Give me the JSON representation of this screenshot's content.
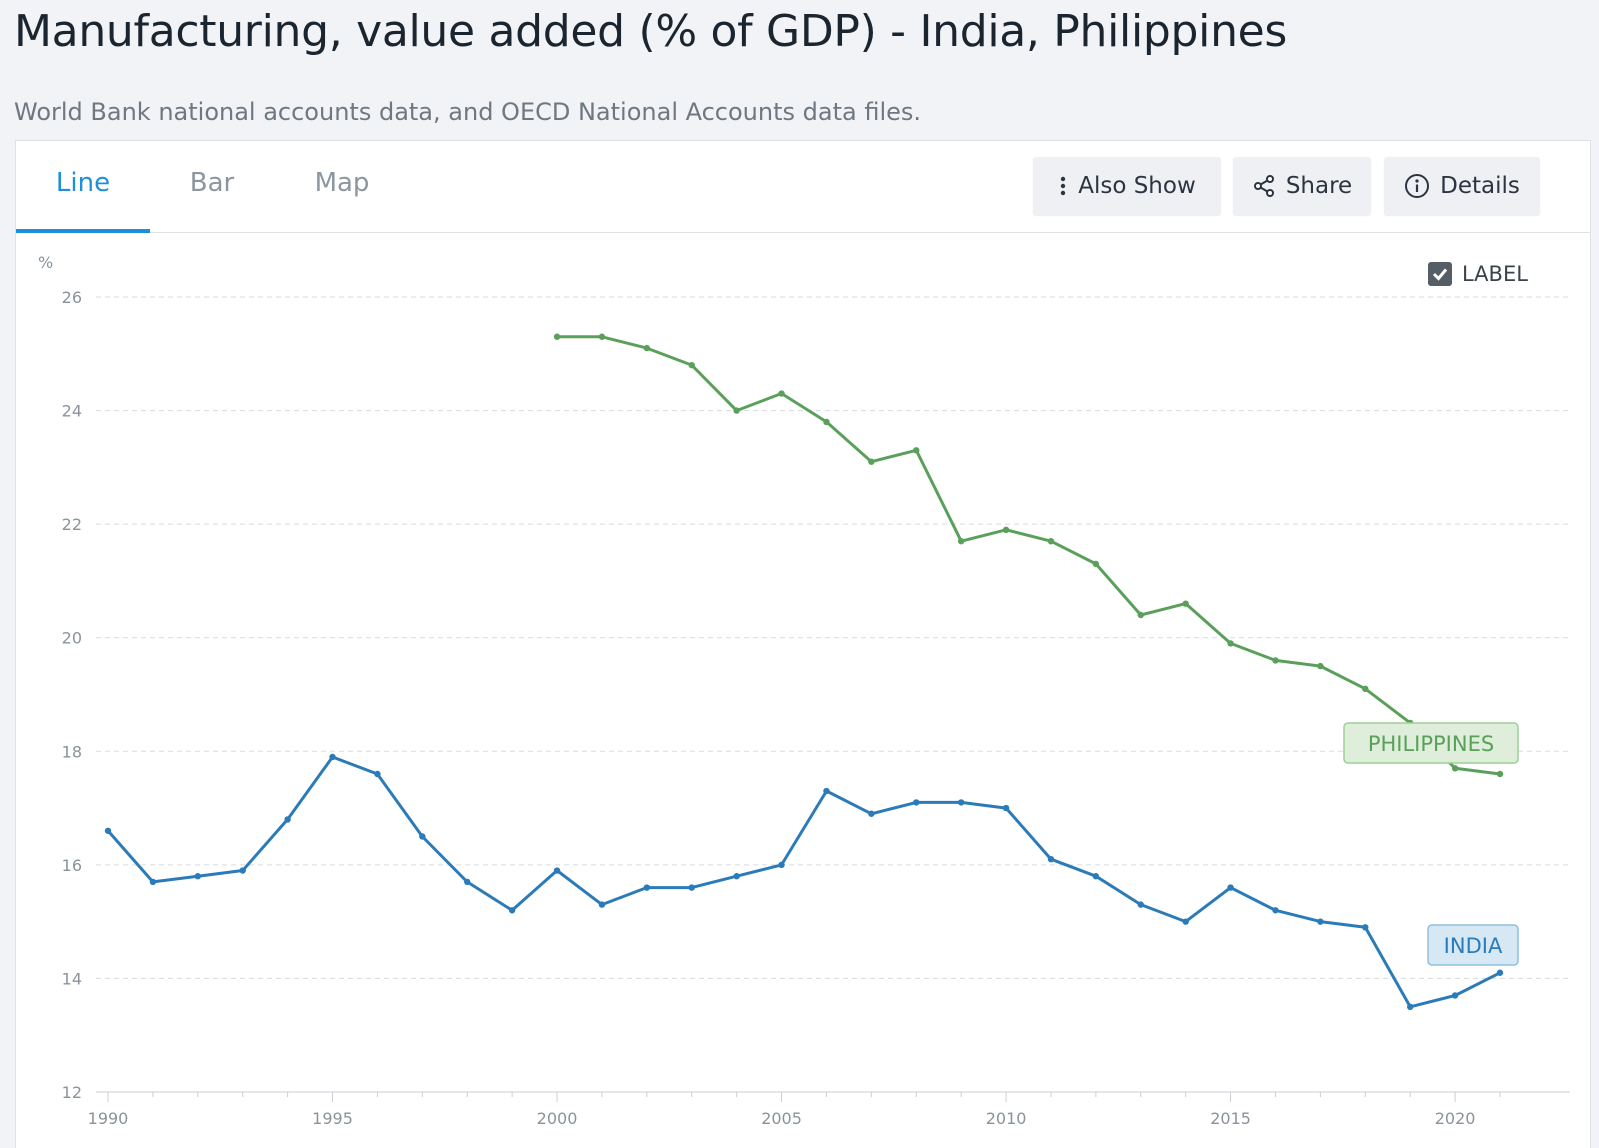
{
  "header": {
    "title": "Manufacturing, value added (% of GDP) - India, Philippines",
    "subtitle": "World Bank national accounts data, and OECD National Accounts data files."
  },
  "tabs": [
    {
      "label": "Line",
      "active": true
    },
    {
      "label": "Bar",
      "active": false
    },
    {
      "label": "Map",
      "active": false
    }
  ],
  "toolbar": {
    "also_show": {
      "label": "Also Show",
      "icon": "vertical-dots-icon"
    },
    "share": {
      "label": "Share",
      "icon": "share-icon"
    },
    "details": {
      "label": "Details",
      "icon": "info-icon"
    }
  },
  "label_toggle": {
    "label": "LABEL",
    "checked": true
  },
  "colors": {
    "accent": "#1f8fdb",
    "india": "#2b7bb9",
    "philippines": "#5aa05a"
  },
  "chart_data": {
    "type": "line",
    "ylabel": "%",
    "ylim": [
      12,
      26
    ],
    "yticks": [
      12,
      14,
      16,
      18,
      20,
      22,
      24,
      26
    ],
    "xlim": [
      1990,
      2021
    ],
    "xticks": [
      1990,
      1995,
      2000,
      2005,
      2010,
      2015,
      2020
    ],
    "grid": "horizontal-dashed",
    "series": [
      {
        "name": "INDIA",
        "color": "#2b7bb9",
        "x": [
          1990,
          1991,
          1992,
          1993,
          1994,
          1995,
          1996,
          1997,
          1998,
          1999,
          2000,
          2001,
          2002,
          2003,
          2004,
          2005,
          2006,
          2007,
          2008,
          2009,
          2010,
          2011,
          2012,
          2013,
          2014,
          2015,
          2016,
          2017,
          2018,
          2019,
          2020,
          2021
        ],
        "y": [
          16.6,
          15.7,
          15.8,
          15.9,
          16.8,
          17.9,
          17.6,
          16.5,
          15.7,
          15.2,
          15.9,
          15.3,
          15.6,
          15.6,
          15.8,
          16.0,
          17.3,
          16.9,
          17.1,
          17.1,
          17.0,
          16.1,
          15.8,
          15.3,
          15.0,
          15.6,
          15.2,
          15.0,
          14.9,
          13.5,
          13.7,
          14.1
        ]
      },
      {
        "name": "PHILIPPINES",
        "color": "#5aa05a",
        "x": [
          2000,
          2001,
          2002,
          2003,
          2004,
          2005,
          2006,
          2007,
          2008,
          2009,
          2010,
          2011,
          2012,
          2013,
          2014,
          2015,
          2016,
          2017,
          2018,
          2019,
          2020,
          2021
        ],
        "y": [
          25.3,
          25.3,
          25.1,
          24.8,
          24.0,
          24.3,
          23.8,
          23.1,
          23.3,
          21.7,
          21.9,
          21.7,
          21.3,
          20.4,
          20.6,
          19.9,
          19.6,
          19.5,
          19.1,
          18.5,
          17.7,
          17.6
        ]
      }
    ]
  }
}
